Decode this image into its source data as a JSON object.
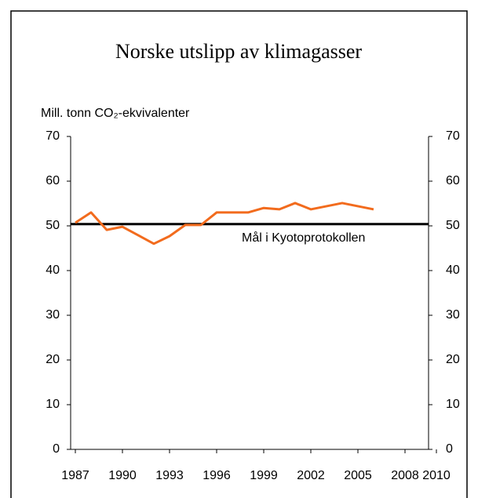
{
  "chart_data": {
    "type": "line",
    "title": "Norske utslipp av klimagasser",
    "y_label": "Mill. tonn CO₂-ekvivalenter",
    "x": [
      1987,
      1988,
      1989,
      1990,
      1991,
      1992,
      1993,
      1994,
      1995,
      1996,
      1997,
      1998,
      1999,
      2000,
      2001,
      2002,
      2003,
      2004,
      2005,
      2006
    ],
    "series": [
      {
        "color": "#f26b1d",
        "values": [
          50.7,
          53.0,
          49.1,
          49.8,
          47.9,
          46.0,
          47.7,
          50.2,
          50.2,
          53.0,
          53.0,
          53.0,
          54.0,
          53.7,
          55.1,
          53.7,
          54.4,
          55.1,
          54.4,
          53.7
        ]
      }
    ],
    "target": {
      "label": "Mål i Kyotoprotokollen",
      "value": 50.4,
      "color": "#000000"
    },
    "xlim": [
      1986.7,
      2010
    ],
    "xticks": [
      1987,
      1990,
      1993,
      1996,
      1999,
      2002,
      2005,
      2008,
      2010
    ],
    "ylim": [
      0,
      70
    ],
    "yticks": [
      0,
      10,
      20,
      30,
      40,
      50,
      60,
      70
    ],
    "y2lim": [
      0,
      70
    ],
    "y2ticks": [
      0,
      10,
      20,
      30,
      40,
      50,
      60,
      70
    ],
    "grid": false
  }
}
